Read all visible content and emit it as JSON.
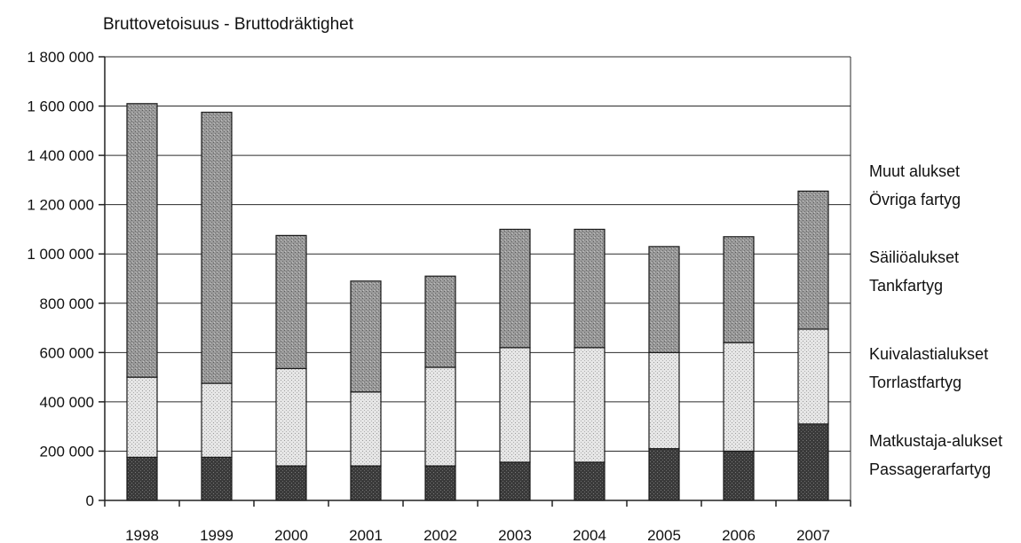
{
  "chart_data": {
    "type": "bar",
    "stacked": true,
    "title": "Bruttovetoisuus - Bruttodräktighet",
    "categories": [
      "1998",
      "1999",
      "2000",
      "2001",
      "2002",
      "2003",
      "2004",
      "2005",
      "2006",
      "2007"
    ],
    "series": [
      {
        "name": "Matkustaja-alukset Passagerarfartyg",
        "label_lines": [
          "Matkustaja-alukset",
          "Passagerarfartyg"
        ],
        "color": "#3d3d3d",
        "values": [
          175000,
          175000,
          140000,
          140000,
          140000,
          155000,
          155000,
          210000,
          200000,
          310000
        ]
      },
      {
        "name": "Kuivalastialukset Torrlastfartyg",
        "label_lines": [
          "Kuivalastialukset",
          "Torrlastfartyg"
        ],
        "color": "#dcdcdc",
        "values": [
          325000,
          300000,
          395000,
          300000,
          400000,
          465000,
          465000,
          390000,
          440000,
          385000
        ]
      },
      {
        "name": "Säiliöalukset Tankfartyg",
        "label_lines": [
          "Säiliöalukset",
          "Tankfartyg"
        ],
        "color": "#8c8c8c",
        "values": [
          1110000,
          1100000,
          540000,
          450000,
          370000,
          480000,
          480000,
          430000,
          430000,
          560000
        ]
      },
      {
        "name": "Muut alukset Övriga fartyg",
        "label_lines": [
          "Muut alukset",
          "Övriga fartyg"
        ],
        "color": "#ffffff",
        "values": [
          0,
          0,
          0,
          0,
          0,
          0,
          0,
          0,
          0,
          0
        ]
      }
    ],
    "y_ticks": [
      "0",
      "200 000",
      "400 000",
      "600 000",
      "800 000",
      "1 000 000",
      "1 200 000",
      "1 400 000",
      "1 600 000",
      "1 800 000"
    ],
    "ylim": [
      0,
      1800000
    ],
    "grid": true,
    "legend_position": "right"
  }
}
